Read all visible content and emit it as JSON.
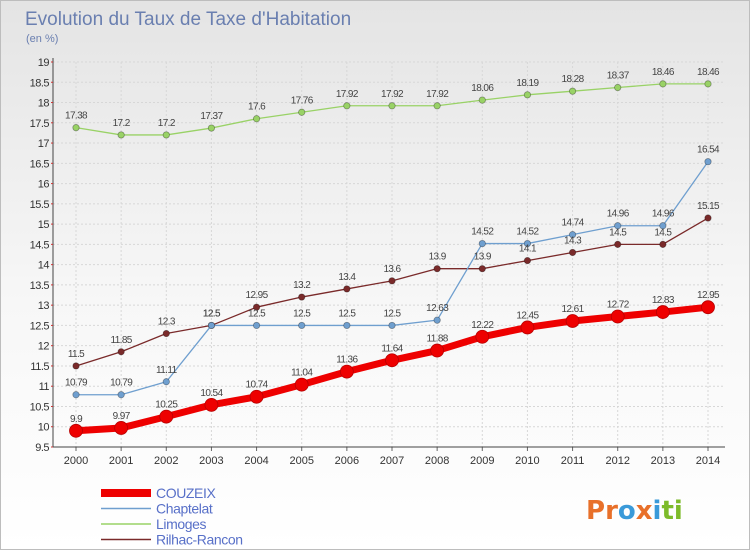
{
  "chart_data": {
    "type": "line",
    "title": "Evolution du Taux de Taxe d'Habitation",
    "subtitle": "(en %)",
    "xlabel": "",
    "ylabel": "",
    "x": [
      "2000",
      "2001",
      "2002",
      "2003",
      "2004",
      "2005",
      "2006",
      "2007",
      "2008",
      "2009",
      "2010",
      "2011",
      "2012",
      "2013",
      "2014"
    ],
    "ylim": [
      9.5,
      19
    ],
    "yticks": [
      "9.5",
      "10",
      "10.5",
      "11",
      "11.5",
      "12",
      "12.5",
      "13",
      "13.5",
      "14",
      "14.5",
      "15",
      "15.5",
      "16",
      "16.5",
      "17",
      "17.5",
      "18",
      "18.5",
      "19"
    ],
    "grid": true,
    "legend_position": "bottom-left",
    "series": [
      {
        "name": "COUZEIX",
        "color": "#ee0000",
        "values": [
          9.9,
          9.97,
          10.25,
          10.54,
          10.74,
          11.04,
          11.36,
          11.64,
          11.88,
          12.22,
          12.45,
          12.61,
          12.72,
          12.83,
          12.95
        ],
        "labels": [
          "9.9",
          "9.97",
          "10.25",
          "10.54",
          "10.74",
          "11.04",
          "11.36",
          "11.64",
          "11.88",
          "12.22",
          "12.45",
          "12.61",
          "12.72",
          "12.83",
          "12.95"
        ]
      },
      {
        "name": "Chaptelat",
        "color": "#6f9fcf",
        "values": [
          10.79,
          10.79,
          11.11,
          12.5,
          12.5,
          12.5,
          12.5,
          12.5,
          12.63,
          14.52,
          14.52,
          14.74,
          14.96,
          14.96,
          16.54
        ],
        "labels": [
          "10.79",
          "10.79",
          "11.11",
          "12.5",
          "12.5",
          "12.5",
          "12.5",
          "12.5",
          "12.63",
          "14.52",
          "14.52",
          "14.74",
          "14.96",
          "14.96",
          "16.54"
        ]
      },
      {
        "name": "Limoges",
        "color": "#99d266",
        "values": [
          17.38,
          17.2,
          17.2,
          17.37,
          17.6,
          17.76,
          17.92,
          17.92,
          17.92,
          18.06,
          18.19,
          18.28,
          18.37,
          18.46,
          18.46
        ],
        "labels": [
          "17.38",
          "17.2",
          "17.2",
          "17.37",
          "17.6",
          "17.76",
          "17.92",
          "17.92",
          "17.92",
          "18.06",
          "18.19",
          "18.28",
          "18.37",
          "18.46",
          "18.46"
        ]
      },
      {
        "name": "Rilhac-Rancon",
        "color": "#7a2a2a",
        "values": [
          11.5,
          11.85,
          12.3,
          12.5,
          12.95,
          13.2,
          13.4,
          13.6,
          13.9,
          13.9,
          14.1,
          14.3,
          14.5,
          14.5,
          15.15
        ],
        "labels": [
          "11.5",
          "11.85",
          "12.3",
          "12.5",
          "12.95",
          "13.2",
          "13.4",
          "13.6",
          "13.9",
          "13.9",
          "14.1",
          "14.3",
          "14.5",
          "14.5",
          "15.15"
        ]
      }
    ]
  },
  "brand": {
    "text": "Proxiti",
    "letters": [
      "P",
      "r",
      "o",
      "x",
      "i",
      "t",
      "i"
    ],
    "colors": [
      "#e8702a",
      "#e8702a",
      "#3a9ad9",
      "#e8702a",
      "#3a9ad9",
      "#7dbb2a",
      "#7dbb2a"
    ]
  }
}
